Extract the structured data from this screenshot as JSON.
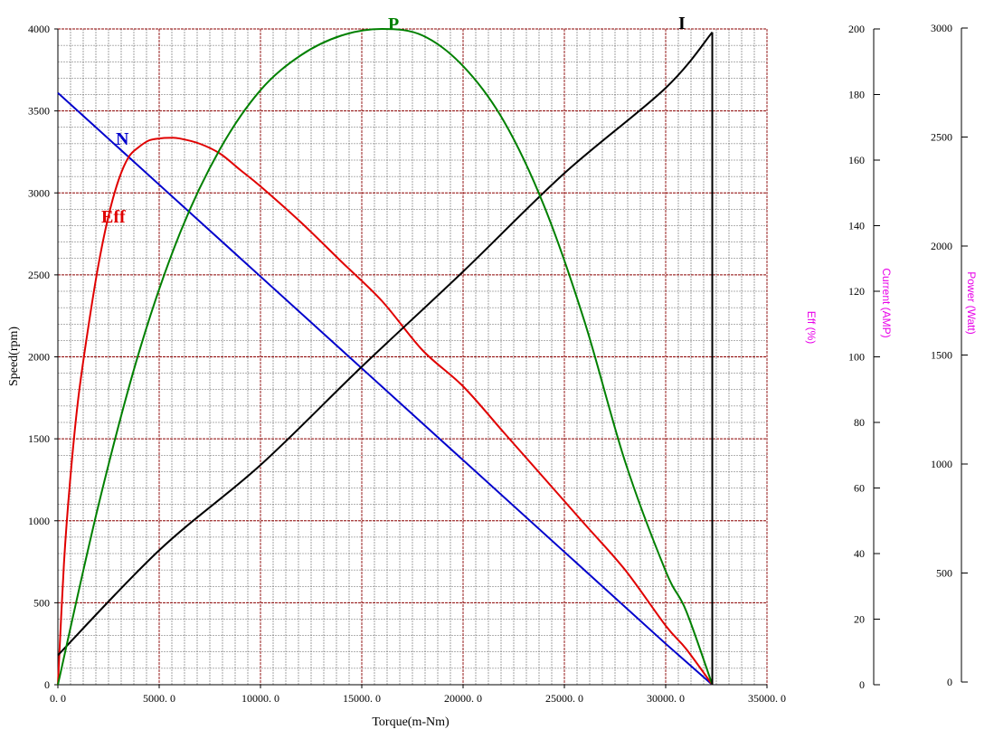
{
  "chart_data": {
    "type": "line",
    "xlabel": "Torque(m-Nm)",
    "ylabel": "Speed(rpm)",
    "xlim": [
      0,
      35000
    ],
    "ylim": [
      0,
      4000
    ],
    "x_ticks": [
      "0. 0",
      "5000. 0",
      "10000. 0",
      "15000. 0",
      "20000. 0",
      "25000. 0",
      "30000. 0",
      "35000. 0"
    ],
    "y_ticks": [
      "0",
      "500",
      "1000",
      "1500",
      "2000",
      "2500",
      "3000",
      "3500",
      "4000"
    ],
    "grid": true,
    "secondary_axes": [
      {
        "title": "Eff (%)",
        "range": [
          0,
          200
        ],
        "ticks": [
          "0",
          "20",
          "40",
          "60",
          "80",
          "100",
          "120",
          "140",
          "160",
          "180",
          "200"
        ]
      },
      {
        "title": "Current (AMP)",
        "range": [
          0,
          200
        ],
        "ticks": [
          "0",
          "20",
          "40",
          "60",
          "80",
          "100",
          "120",
          "140",
          "160",
          "180",
          "200"
        ]
      },
      {
        "title": "Power (Watt)",
        "range": [
          0,
          3000
        ],
        "ticks": [
          "0",
          "500",
          "1000",
          "1500",
          "2000",
          "2500",
          "3000"
        ]
      }
    ],
    "series": [
      {
        "name": "N",
        "axis": "Speed(rpm)",
        "color": "#0000cc",
        "points": [
          [
            0,
            3610
          ],
          [
            5000,
            3050
          ],
          [
            10000,
            2490
          ],
          [
            15000,
            1930
          ],
          [
            20000,
            1370
          ],
          [
            25000,
            810
          ],
          [
            30000,
            250
          ],
          [
            32300,
            0
          ]
        ]
      },
      {
        "name": "Eff",
        "axis": "Eff (%)",
        "color": "#e00000",
        "points": [
          [
            0,
            0
          ],
          [
            300,
            37
          ],
          [
            600,
            62
          ],
          [
            1000,
            87
          ],
          [
            1500,
            109
          ],
          [
            2000,
            128
          ],
          [
            2500,
            143
          ],
          [
            3000,
            154
          ],
          [
            3500,
            161
          ],
          [
            4000,
            164
          ],
          [
            4500,
            166
          ],
          [
            5000,
            166.6
          ],
          [
            5500,
            166.8
          ],
          [
            6000,
            166.6
          ],
          [
            7000,
            165
          ],
          [
            8000,
            162
          ],
          [
            9000,
            157
          ],
          [
            10000,
            152
          ],
          [
            12000,
            141
          ],
          [
            14000,
            129
          ],
          [
            16000,
            117
          ],
          [
            18000,
            102
          ],
          [
            20000,
            91
          ],
          [
            22000,
            77
          ],
          [
            24000,
            63
          ],
          [
            26000,
            49
          ],
          [
            28000,
            35
          ],
          [
            30000,
            18
          ],
          [
            31000,
            11
          ],
          [
            32300,
            0
          ]
        ]
      },
      {
        "name": "I",
        "axis": "Current (AMP)",
        "color": "#000000",
        "points": [
          [
            0,
            9
          ],
          [
            5000,
            41
          ],
          [
            10000,
            67
          ],
          [
            15000,
            97
          ],
          [
            20000,
            126
          ],
          [
            25000,
            156
          ],
          [
            30000,
            182
          ],
          [
            32300,
            199
          ]
        ]
      },
      {
        "name": "P",
        "axis": "Power (Watt)",
        "color": "#008000",
        "points": [
          [
            0,
            0
          ],
          [
            2000,
            820
          ],
          [
            4000,
            1520
          ],
          [
            6000,
            2060
          ],
          [
            8000,
            2450
          ],
          [
            10000,
            2720
          ],
          [
            12000,
            2880
          ],
          [
            14000,
            2970
          ],
          [
            16000,
            3000
          ],
          [
            18000,
            2970
          ],
          [
            20000,
            2830
          ],
          [
            22000,
            2580
          ],
          [
            24000,
            2190
          ],
          [
            26000,
            1660
          ],
          [
            28000,
            1020
          ],
          [
            30000,
            520
          ],
          [
            31000,
            340
          ],
          [
            32300,
            0
          ]
        ]
      }
    ]
  },
  "colors": {
    "major_grid": "#8b0000",
    "minor_grid": "#666666",
    "secondary_axis_title": "#e800e8"
  }
}
